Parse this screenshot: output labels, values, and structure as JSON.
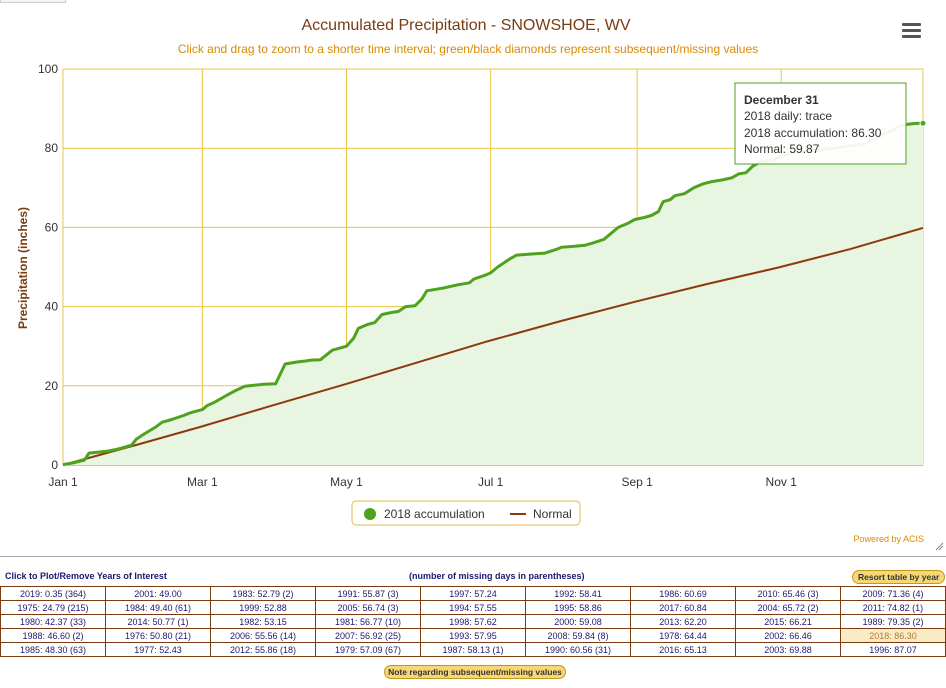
{
  "chart_data": {
    "type": "area",
    "title": "Accumulated Precipitation - SNOWSHOE, WV",
    "subtitle": "Click and drag to zoom to a shorter time interval; green/black diamonds represent subsequent/missing values",
    "ylabel": "Precipitation (inches)",
    "xlabel": "",
    "ylim": [
      0,
      100
    ],
    "y_ticks": [
      "0",
      "20",
      "40",
      "60",
      "80",
      "100"
    ],
    "xlim": [
      1,
      365
    ],
    "x_ticks": [
      {
        "label": "Jan 1",
        "day": 1
      },
      {
        "label": "Mar 1",
        "day": 60
      },
      {
        "label": "May 1",
        "day": 121
      },
      {
        "label": "Jul 1",
        "day": 182
      },
      {
        "label": "Sep 1",
        "day": 244
      },
      {
        "label": "Nov 1",
        "day": 305
      }
    ],
    "grid": true,
    "legend": "bottom-center",
    "series": [
      {
        "name": "2018 accumulation",
        "color": "#4fa21e",
        "fill": "#e8f5e1",
        "x": [
          1,
          5,
          10,
          12,
          20,
          24,
          30,
          32,
          35,
          40,
          43,
          47,
          52,
          55,
          60,
          62,
          65,
          70,
          74,
          78,
          83,
          86,
          91,
          95,
          100,
          104,
          106,
          110,
          115,
          118,
          121,
          124,
          126,
          130,
          133,
          136,
          140,
          143,
          146,
          150,
          153,
          155,
          160,
          162,
          168,
          173,
          175,
          180,
          182,
          185,
          190,
          193,
          200,
          205,
          210,
          212,
          217,
          222,
          225,
          230,
          236,
          240,
          243,
          247,
          250,
          253,
          255,
          258,
          260,
          264,
          268,
          272,
          275,
          280,
          284,
          287,
          290,
          293,
          296,
          300,
          302,
          305,
          308,
          310,
          315,
          320,
          323,
          327,
          333,
          340,
          345,
          350,
          355,
          358,
          361,
          363,
          365
        ],
        "y": [
          0.1,
          0.5,
          1.2,
          3.0,
          3.5,
          4.0,
          5.0,
          6.5,
          7.7,
          9.5,
          10.8,
          11.5,
          12.5,
          13.2,
          14.0,
          15.0,
          15.8,
          17.5,
          18.8,
          19.9,
          20.2,
          20.4,
          20.5,
          25.5,
          26.0,
          26.3,
          26.5,
          26.6,
          29.0,
          29.5,
          30.0,
          32.0,
          34.5,
          35.5,
          36.0,
          38.0,
          38.5,
          38.8,
          40.0,
          40.2,
          42.0,
          44.0,
          44.5,
          44.7,
          45.5,
          46.0,
          47.0,
          48.0,
          48.5,
          50.0,
          52.0,
          53.0,
          53.3,
          53.5,
          54.5,
          55.0,
          55.2,
          55.5,
          56.0,
          57.0,
          60.0,
          61.0,
          62.0,
          62.5,
          63.0,
          64.0,
          66.5,
          67.0,
          68.0,
          68.5,
          70.0,
          71.0,
          71.5,
          72.0,
          72.5,
          73.5,
          73.8,
          75.5,
          76.5,
          77.0,
          77.2,
          78.0,
          78.5,
          79.0,
          79.2,
          79.5,
          79.7,
          80.0,
          80.5,
          81.0,
          82.5,
          84.0,
          85.5,
          86.0,
          86.2,
          86.3,
          86.3
        ]
      },
      {
        "name": "Normal",
        "color": "#8b3a0f",
        "x": [
          1,
          31,
          59,
          90,
          120,
          151,
          181,
          212,
          243,
          273,
          304,
          334,
          365
        ],
        "y": [
          0.0,
          4.9,
          9.6,
          15.1,
          20.3,
          25.9,
          31.3,
          36.4,
          41.2,
          45.6,
          49.9,
          54.5,
          59.87
        ]
      }
    ],
    "tooltip": {
      "date": "December 31",
      "lines": [
        "2018 daily: trace",
        "2018 accumulation: 86.30",
        "Normal: 59.87"
      ],
      "day": 365
    }
  },
  "powered_by": "Powered by ACIS",
  "table": {
    "left_header": "Click to Plot/Remove Years of Interest",
    "mid_header": "(number of missing days in parentheses)",
    "resort_label": "Resort table by year",
    "note_label": "Note regarding subsequent/missing values",
    "rows": [
      [
        "2019: 0.35 (364)",
        "2001: 49.00",
        "1983: 52.79 (2)",
        "1991: 55.87 (3)",
        "1997: 57.24",
        "1992: 58.41",
        "1986: 60.69",
        "2010: 65.46 (3)",
        "2009: 71.36 (4)"
      ],
      [
        "1975: 24.79 (215)",
        "1984: 49.40 (61)",
        "1999: 52.88",
        "2005: 56.74 (3)",
        "1994: 57.55",
        "1995: 58.86",
        "2017: 60.84",
        "2004: 65.72 (2)",
        "2011: 74.82 (1)"
      ],
      [
        "1980: 42.37 (33)",
        "2014: 50.77 (1)",
        "1982: 53.15",
        "1981: 56.77 (10)",
        "1998: 57.62",
        "2000: 59.08",
        "2013: 62.20",
        "2015: 66.21",
        "1989: 79.35 (2)"
      ],
      [
        "1988: 46.60 (2)",
        "1976: 50.80 (21)",
        "2006: 55.56 (14)",
        "2007: 56.92 (25)",
        "1993: 57.95",
        "2008: 59.84 (8)",
        "1978: 64.44",
        "2002: 66.46",
        "2018: 86.30"
      ],
      [
        "1985: 48.30 (63)",
        "1977: 52.43",
        "2012: 55.86 (18)",
        "1979: 57.09 (67)",
        "1987: 58.13 (1)",
        "1990: 60.56 (31)",
        "2016: 65.13",
        "2003: 69.88",
        "1996: 87.07"
      ]
    ],
    "selected": "2018: 86.30"
  }
}
